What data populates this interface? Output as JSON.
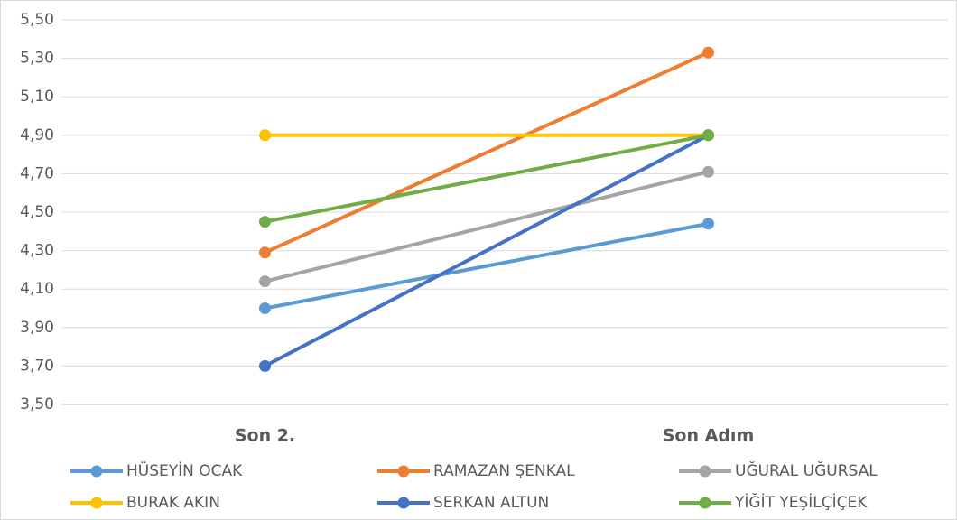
{
  "chart_data": {
    "type": "line",
    "categories": [
      "Son 2.",
      "Son Adım"
    ],
    "series": [
      {
        "name": "HÜSEYİN OCAK",
        "color": "#5b9bd5",
        "values": [
          4.0,
          4.44
        ]
      },
      {
        "name": "RAMAZAN ŞENKAL",
        "color": "#ed7d31",
        "values": [
          4.29,
          5.33
        ]
      },
      {
        "name": "UĞURAL UĞURSAL",
        "color": "#a5a5a5",
        "values": [
          4.14,
          4.71
        ]
      },
      {
        "name": "BURAK AKIN",
        "color": "#ffc000",
        "values": [
          4.9,
          4.9
        ]
      },
      {
        "name": "SERKAN ALTUN",
        "color": "#4472c4",
        "values": [
          3.7,
          4.9
        ]
      },
      {
        "name": "YİĞİT YEŞİLÇİÇEK",
        "color": "#70ad47",
        "values": [
          4.45,
          4.9
        ]
      }
    ],
    "ylim": [
      3.5,
      5.5
    ],
    "yticks": [
      {
        "value": 3.5,
        "label": "3,50"
      },
      {
        "value": 3.7,
        "label": "3,70"
      },
      {
        "value": 3.9,
        "label": "3,90"
      },
      {
        "value": 4.1,
        "label": "4,10"
      },
      {
        "value": 4.3,
        "label": "4,30"
      },
      {
        "value": 4.5,
        "label": "4,50"
      },
      {
        "value": 4.7,
        "label": "4,70"
      },
      {
        "value": 4.9,
        "label": "4,90"
      },
      {
        "value": 5.1,
        "label": "5,10"
      },
      {
        "value": 5.3,
        "label": "5,30"
      },
      {
        "value": 5.5,
        "label": "5,50"
      }
    ],
    "grid": true,
    "legend": "bottom"
  }
}
